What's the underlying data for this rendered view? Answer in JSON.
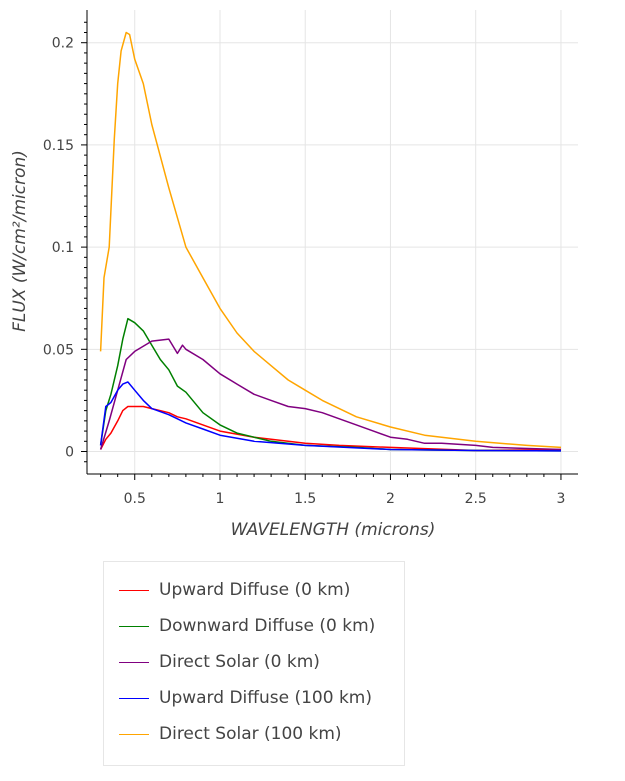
{
  "chart_data": {
    "type": "line",
    "xlabel": "WAVELENGTH (microns)",
    "ylabel": "FLUX (W/cm²/micron)",
    "xlim": [
      0.22,
      3.1
    ],
    "ylim": [
      -0.011,
      0.216
    ],
    "xticks": [
      0.5,
      1,
      1.5,
      2,
      2.5,
      3
    ],
    "xtick_labels": [
      "0.5",
      "1",
      "1.5",
      "2",
      "2.5",
      "3"
    ],
    "yticks": [
      0,
      0.05,
      0.1,
      0.15,
      0.2
    ],
    "ytick_labels": [
      "0",
      "0.05",
      "0.1",
      "0.15",
      "0.2"
    ],
    "grid": true,
    "legend_position": "bottom",
    "series": [
      {
        "name": "Upward Diffuse (0 km)",
        "color": "#ff0000",
        "x": [
          0.3,
          0.33,
          0.36,
          0.4,
          0.43,
          0.46,
          0.5,
          0.55,
          0.6,
          0.7,
          0.75,
          0.8,
          0.9,
          1.0,
          1.2,
          1.4,
          1.5,
          1.7,
          2.0,
          2.5,
          3.0
        ],
        "y": [
          0.001,
          0.006,
          0.009,
          0.015,
          0.02,
          0.022,
          0.022,
          0.022,
          0.021,
          0.019,
          0.017,
          0.016,
          0.013,
          0.01,
          0.007,
          0.005,
          0.004,
          0.003,
          0.002,
          0.0005,
          0.001
        ]
      },
      {
        "name": "Downward Diffuse (0 km)",
        "color": "#008000",
        "x": [
          0.3,
          0.33,
          0.36,
          0.4,
          0.43,
          0.46,
          0.5,
          0.55,
          0.6,
          0.65,
          0.7,
          0.75,
          0.8,
          0.9,
          1.0,
          1.1,
          1.2,
          1.3,
          1.5,
          1.8,
          2.0,
          2.5,
          3.0
        ],
        "y": [
          0.003,
          0.02,
          0.028,
          0.042,
          0.055,
          0.065,
          0.063,
          0.059,
          0.052,
          0.045,
          0.04,
          0.032,
          0.029,
          0.019,
          0.013,
          0.009,
          0.007,
          0.005,
          0.003,
          0.002,
          0.001,
          0.0005,
          0.0003
        ]
      },
      {
        "name": "Direct Solar (0 km)",
        "color": "#800080",
        "x": [
          0.3,
          0.35,
          0.4,
          0.45,
          0.5,
          0.6,
          0.7,
          0.75,
          0.78,
          0.8,
          0.9,
          1.0,
          1.1,
          1.2,
          1.3,
          1.4,
          1.5,
          1.6,
          1.7,
          1.8,
          1.9,
          2.0,
          2.1,
          2.2,
          2.3,
          2.5,
          2.6,
          3.0
        ],
        "y": [
          0.001,
          0.015,
          0.03,
          0.045,
          0.049,
          0.054,
          0.055,
          0.048,
          0.052,
          0.05,
          0.045,
          0.038,
          0.033,
          0.028,
          0.025,
          0.022,
          0.021,
          0.019,
          0.016,
          0.013,
          0.01,
          0.007,
          0.006,
          0.004,
          0.004,
          0.003,
          0.002,
          0.001
        ]
      },
      {
        "name": "Upward Diffuse (100 km)",
        "color": "#0000ff",
        "x": [
          0.3,
          0.33,
          0.36,
          0.4,
          0.43,
          0.46,
          0.5,
          0.55,
          0.6,
          0.7,
          0.75,
          0.8,
          0.9,
          1.0,
          1.2,
          1.5,
          2.0,
          2.5,
          3.0
        ],
        "y": [
          0.003,
          0.022,
          0.024,
          0.03,
          0.033,
          0.034,
          0.03,
          0.025,
          0.021,
          0.018,
          0.016,
          0.014,
          0.011,
          0.008,
          0.005,
          0.003,
          0.001,
          0.0005,
          0.0003
        ]
      },
      {
        "name": "Direct Solar (100 km)",
        "color": "#ffa500",
        "x": [
          0.3,
          0.32,
          0.35,
          0.38,
          0.4,
          0.42,
          0.45,
          0.47,
          0.5,
          0.55,
          0.6,
          0.7,
          0.8,
          0.9,
          1.0,
          1.1,
          1.2,
          1.3,
          1.4,
          1.5,
          1.6,
          1.8,
          2.0,
          2.2,
          2.5,
          2.8,
          3.0
        ],
        "y": [
          0.049,
          0.085,
          0.1,
          0.153,
          0.18,
          0.196,
          0.205,
          0.204,
          0.192,
          0.18,
          0.16,
          0.129,
          0.1,
          0.085,
          0.07,
          0.058,
          0.049,
          0.042,
          0.035,
          0.03,
          0.025,
          0.017,
          0.012,
          0.008,
          0.005,
          0.003,
          0.002
        ]
      }
    ]
  }
}
